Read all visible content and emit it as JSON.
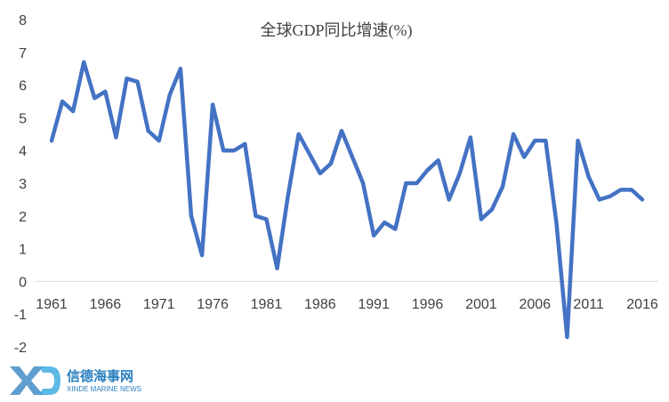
{
  "chart_data": {
    "type": "line",
    "title": "全球GDP同比增速(%)",
    "xlabel": "",
    "ylabel": "",
    "x": [
      1961,
      1962,
      1963,
      1964,
      1965,
      1966,
      1967,
      1968,
      1969,
      1970,
      1971,
      1972,
      1973,
      1974,
      1975,
      1976,
      1977,
      1978,
      1979,
      1980,
      1981,
      1982,
      1983,
      1984,
      1985,
      1986,
      1987,
      1988,
      1989,
      1990,
      1991,
      1992,
      1993,
      1994,
      1995,
      1996,
      1997,
      1998,
      1999,
      2000,
      2001,
      2002,
      2003,
      2004,
      2005,
      2006,
      2007,
      2008,
      2009,
      2010,
      2011,
      2012,
      2013,
      2014,
      2015,
      2016
    ],
    "series": [
      {
        "values": [
          4.3,
          5.5,
          5.2,
          6.7,
          5.6,
          5.8,
          4.4,
          6.2,
          6.1,
          4.6,
          4.3,
          5.7,
          6.5,
          2.0,
          0.8,
          5.4,
          4.0,
          4.0,
          4.2,
          2.0,
          1.9,
          0.4,
          2.6,
          4.5,
          3.9,
          3.3,
          3.6,
          4.6,
          3.8,
          3.0,
          1.4,
          1.8,
          1.6,
          3.0,
          3.0,
          3.4,
          3.7,
          2.5,
          3.3,
          4.4,
          1.9,
          2.2,
          2.9,
          4.5,
          3.8,
          4.3,
          4.3,
          1.8,
          -1.7,
          4.3,
          3.2,
          2.5,
          2.6,
          2.8,
          2.8,
          2.5
        ],
        "color": "#4472C4"
      }
    ],
    "x_tick_labels": [
      "1961",
      "1966",
      "1971",
      "1976",
      "1981",
      "1986",
      "1991",
      "1996",
      "2001",
      "2006",
      "2011",
      "2016"
    ],
    "y_tick_labels": [
      "-2",
      "-1",
      "0",
      "1",
      "2",
      "3",
      "4",
      "5",
      "6",
      "7",
      "8"
    ],
    "ylim": [
      -2,
      8
    ],
    "xlim": [
      1961,
      2016
    ],
    "grid": false,
    "legend": "none"
  },
  "watermark": {
    "logo_text": "XD",
    "cn_text": "信德海事网",
    "en_text": "XINDE MARINE NEWS",
    "color": "#2a7fbf"
  }
}
